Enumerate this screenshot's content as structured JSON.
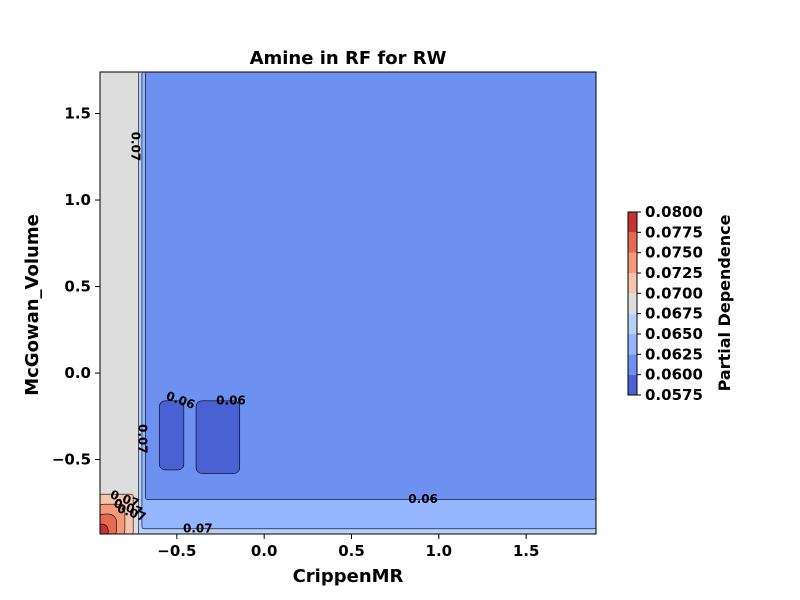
{
  "chart_data": {
    "type": "contour",
    "title": "Amine in RF for RW",
    "xlabel": "CrippenMR",
    "ylabel": "McGowan_Volume",
    "xlim": [
      -0.94,
      1.9
    ],
    "ylim": [
      -0.93,
      1.74
    ],
    "x_ticks": [
      -0.5,
      0.0,
      0.5,
      1.0,
      1.5
    ],
    "x_tick_labels": [
      "−0.5",
      "0.0",
      "0.5",
      "1.0",
      "1.5"
    ],
    "y_ticks": [
      -0.5,
      0.0,
      0.5,
      1.0,
      1.5
    ],
    "y_tick_labels": [
      "−0.5",
      "0.0",
      "0.5",
      "1.0",
      "1.5"
    ],
    "colorbar": {
      "label": "Partial Dependence",
      "levels": [
        0.0575,
        0.06,
        0.0625,
        0.065,
        0.0675,
        0.07,
        0.0725,
        0.075,
        0.0775,
        0.08
      ],
      "tick_labels": [
        "0.0575",
        "0.0600",
        "0.0625",
        "0.0650",
        "0.0675",
        "0.0700",
        "0.0725",
        "0.0750",
        "0.0775",
        "0.0800"
      ],
      "colors": [
        "#4961d2",
        "#6e90f1",
        "#95b5fe",
        "#bad0f8",
        "#dddddd",
        "#f5c4ad",
        "#f49a7b",
        "#e46a52",
        "#c53334"
      ]
    },
    "regions": [
      {
        "name": "background",
        "band": [
          0.0675,
          0.07
        ],
        "x_range": [
          -0.94,
          1.9
        ],
        "y_range": [
          -0.93,
          1.74
        ]
      },
      {
        "name": "band-0.065",
        "band": [
          0.065,
          0.0675
        ],
        "x_range": [
          -0.72,
          1.9
        ],
        "y_range": [
          -0.93,
          1.74
        ]
      },
      {
        "name": "band-0.0625",
        "band": [
          0.0625,
          0.065
        ],
        "x_range": [
          -0.7,
          1.9
        ],
        "y_range": [
          -0.9,
          1.74
        ]
      },
      {
        "name": "plateau",
        "band": [
          0.06,
          0.0625
        ],
        "x_range": [
          -0.68,
          1.9
        ],
        "y_range": [
          -0.73,
          1.74
        ]
      },
      {
        "name": "dip-left",
        "band": [
          0.0575,
          0.06
        ],
        "x_range": [
          -0.6,
          -0.46
        ],
        "y_range": [
          -0.56,
          -0.16
        ]
      },
      {
        "name": "dip-right",
        "band": [
          0.0575,
          0.06
        ],
        "x_range": [
          -0.39,
          -0.14
        ],
        "y_range": [
          -0.58,
          -0.16
        ]
      },
      {
        "name": "corner-peak",
        "band": [
          0.07,
          0.08
        ],
        "x_range": [
          -0.94,
          -0.75
        ],
        "y_range": [
          -0.93,
          -0.7
        ]
      }
    ],
    "contour_labels": [
      {
        "text": "0.07",
        "x": -0.74,
        "y": 1.31,
        "angle": 90
      },
      {
        "text": "0.06",
        "x": -0.48,
        "y": -0.16,
        "angle": 20
      },
      {
        "text": "0.06",
        "x": -0.19,
        "y": -0.16,
        "angle": 0
      },
      {
        "text": "0.07",
        "x": -0.7,
        "y": -0.38,
        "angle": 90
      },
      {
        "text": "0.06",
        "x": 0.91,
        "y": -0.73,
        "angle": 0
      },
      {
        "text": "0.07",
        "x": -0.38,
        "y": -0.9,
        "angle": 0
      },
      {
        "text": "0.07",
        "x": -0.8,
        "y": -0.73,
        "angle": 20
      },
      {
        "text": "0.07",
        "x": -0.78,
        "y": -0.78,
        "angle": 20
      },
      {
        "text": "0.07",
        "x": -0.76,
        "y": -0.81,
        "angle": 20
      }
    ]
  }
}
